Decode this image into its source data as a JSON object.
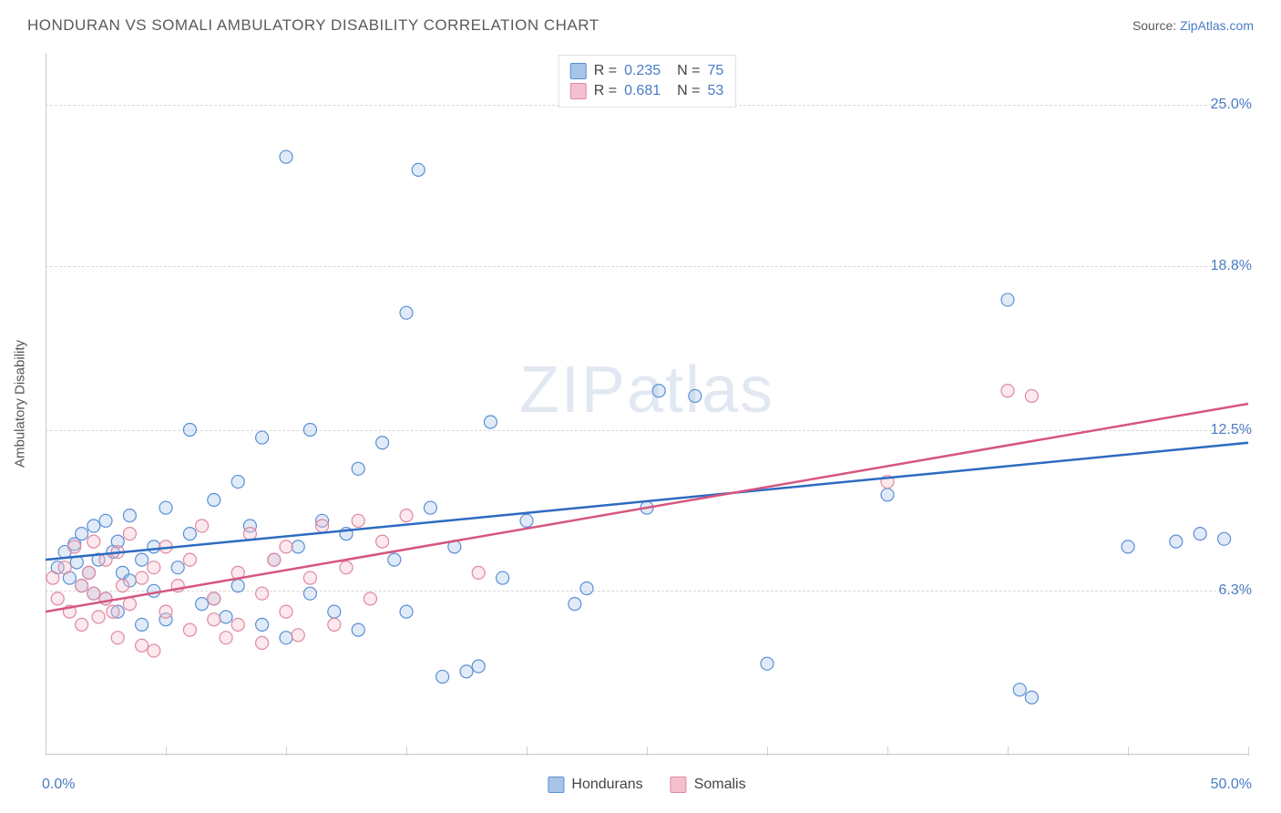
{
  "header": {
    "title": "HONDURAN VS SOMALI AMBULATORY DISABILITY CORRELATION CHART",
    "source_prefix": "Source: ",
    "source_link": "ZipAtlas.com"
  },
  "chart": {
    "type": "scatter",
    "watermark": "ZIPatlas",
    "y_axis_label": "Ambulatory Disability",
    "xlim": [
      0,
      50
    ],
    "ylim": [
      0,
      27
    ],
    "x_tick_positions": [
      0,
      5,
      10,
      15,
      20,
      25,
      30,
      35,
      40,
      45,
      50
    ],
    "x_tick_labels_shown": {
      "0": "0.0%",
      "50": "50.0%"
    },
    "y_gridlines": [
      6.3,
      12.5,
      18.8,
      25.0
    ],
    "y_tick_labels": [
      "6.3%",
      "12.5%",
      "18.8%",
      "25.0%"
    ],
    "grid_color": "#d8d8d8",
    "axis_color": "#c8c8c8",
    "background_color": "#ffffff",
    "tick_label_color": "#4a7cc4",
    "label_fontsize": 15,
    "tick_fontsize": 16,
    "marker_radius": 7,
    "marker_stroke_width": 1.2,
    "marker_fill_opacity": 0.35,
    "line_width": 2.5,
    "series": [
      {
        "name": "Hondurans",
        "color_stroke": "#5a8fd6",
        "color_fill": "#a8c5e8",
        "trend_color": "#2d6bc0",
        "R": "0.235",
        "N": "75",
        "trendline": {
          "x1": 0,
          "y1": 7.5,
          "x2": 50,
          "y2": 12.0
        },
        "points": [
          [
            0.5,
            7.2
          ],
          [
            0.8,
            7.8
          ],
          [
            1.0,
            6.8
          ],
          [
            1.2,
            8.1
          ],
          [
            1.3,
            7.4
          ],
          [
            1.5,
            6.5
          ],
          [
            1.5,
            8.5
          ],
          [
            1.8,
            7.0
          ],
          [
            2.0,
            8.8
          ],
          [
            2.0,
            6.2
          ],
          [
            2.2,
            7.5
          ],
          [
            2.5,
            9.0
          ],
          [
            2.5,
            6.0
          ],
          [
            2.8,
            7.8
          ],
          [
            3.0,
            8.2
          ],
          [
            3.0,
            5.5
          ],
          [
            3.2,
            7.0
          ],
          [
            3.5,
            9.2
          ],
          [
            3.5,
            6.7
          ],
          [
            4.0,
            7.5
          ],
          [
            4.0,
            5.0
          ],
          [
            4.5,
            8.0
          ],
          [
            4.5,
            6.3
          ],
          [
            5.0,
            9.5
          ],
          [
            5.0,
            5.2
          ],
          [
            5.5,
            7.2
          ],
          [
            6.0,
            8.5
          ],
          [
            6.0,
            12.5
          ],
          [
            6.5,
            5.8
          ],
          [
            7.0,
            9.8
          ],
          [
            7.0,
            6.0
          ],
          [
            7.5,
            5.3
          ],
          [
            8.0,
            10.5
          ],
          [
            8.0,
            6.5
          ],
          [
            8.5,
            8.8
          ],
          [
            9.0,
            5.0
          ],
          [
            9.0,
            12.2
          ],
          [
            9.5,
            7.5
          ],
          [
            10.0,
            23.0
          ],
          [
            10.0,
            4.5
          ],
          [
            10.5,
            8.0
          ],
          [
            11.0,
            12.5
          ],
          [
            11.0,
            6.2
          ],
          [
            11.5,
            9.0
          ],
          [
            12.0,
            5.5
          ],
          [
            12.5,
            8.5
          ],
          [
            13.0,
            11.0
          ],
          [
            13.0,
            4.8
          ],
          [
            14.0,
            12.0
          ],
          [
            14.5,
            7.5
          ],
          [
            15.0,
            17.0
          ],
          [
            15.0,
            5.5
          ],
          [
            15.5,
            22.5
          ],
          [
            16.0,
            9.5
          ],
          [
            16.5,
            3.0
          ],
          [
            17.0,
            8.0
          ],
          [
            17.5,
            3.2
          ],
          [
            18.0,
            3.4
          ],
          [
            18.5,
            12.8
          ],
          [
            19.0,
            6.8
          ],
          [
            20.0,
            9.0
          ],
          [
            22.0,
            5.8
          ],
          [
            22.5,
            6.4
          ],
          [
            25.0,
            9.5
          ],
          [
            25.5,
            14.0
          ],
          [
            27.0,
            13.8
          ],
          [
            30.0,
            3.5
          ],
          [
            35.0,
            10.0
          ],
          [
            40.0,
            17.5
          ],
          [
            40.5,
            2.5
          ],
          [
            41.0,
            2.2
          ],
          [
            45.0,
            8.0
          ],
          [
            47.0,
            8.2
          ],
          [
            48.0,
            8.5
          ],
          [
            49.0,
            8.3
          ]
        ]
      },
      {
        "name": "Somalis",
        "color_stroke": "#e088a0",
        "color_fill": "#f4c0cf",
        "trend_color": "#d6567f",
        "R": "0.681",
        "N": "53",
        "trendline": {
          "x1": 0,
          "y1": 5.5,
          "x2": 50,
          "y2": 13.5
        },
        "points": [
          [
            0.3,
            6.8
          ],
          [
            0.5,
            6.0
          ],
          [
            0.8,
            7.2
          ],
          [
            1.0,
            5.5
          ],
          [
            1.2,
            8.0
          ],
          [
            1.5,
            6.5
          ],
          [
            1.5,
            5.0
          ],
          [
            1.8,
            7.0
          ],
          [
            2.0,
            6.2
          ],
          [
            2.0,
            8.2
          ],
          [
            2.2,
            5.3
          ],
          [
            2.5,
            7.5
          ],
          [
            2.5,
            6.0
          ],
          [
            2.8,
            5.5
          ],
          [
            3.0,
            7.8
          ],
          [
            3.0,
            4.5
          ],
          [
            3.2,
            6.5
          ],
          [
            3.5,
            8.5
          ],
          [
            3.5,
            5.8
          ],
          [
            4.0,
            4.2
          ],
          [
            4.0,
            6.8
          ],
          [
            4.5,
            7.2
          ],
          [
            4.5,
            4.0
          ],
          [
            5.0,
            8.0
          ],
          [
            5.0,
            5.5
          ],
          [
            5.5,
            6.5
          ],
          [
            6.0,
            7.5
          ],
          [
            6.0,
            4.8
          ],
          [
            6.5,
            8.8
          ],
          [
            7.0,
            5.2
          ],
          [
            7.0,
            6.0
          ],
          [
            7.5,
            4.5
          ],
          [
            8.0,
            7.0
          ],
          [
            8.0,
            5.0
          ],
          [
            8.5,
            8.5
          ],
          [
            9.0,
            6.2
          ],
          [
            9.0,
            4.3
          ],
          [
            9.5,
            7.5
          ],
          [
            10.0,
            5.5
          ],
          [
            10.0,
            8.0
          ],
          [
            10.5,
            4.6
          ],
          [
            11.0,
            6.8
          ],
          [
            11.5,
            8.8
          ],
          [
            12.0,
            5.0
          ],
          [
            12.5,
            7.2
          ],
          [
            13.0,
            9.0
          ],
          [
            13.5,
            6.0
          ],
          [
            14.0,
            8.2
          ],
          [
            15.0,
            9.2
          ],
          [
            18.0,
            7.0
          ],
          [
            35.0,
            10.5
          ],
          [
            40.0,
            14.0
          ],
          [
            41.0,
            13.8
          ]
        ]
      }
    ],
    "legend_bottom": [
      {
        "label": "Hondurans",
        "fill": "#a8c5e8",
        "stroke": "#5a8fd6"
      },
      {
        "label": "Somalis",
        "fill": "#f4c0cf",
        "stroke": "#e088a0"
      }
    ]
  }
}
